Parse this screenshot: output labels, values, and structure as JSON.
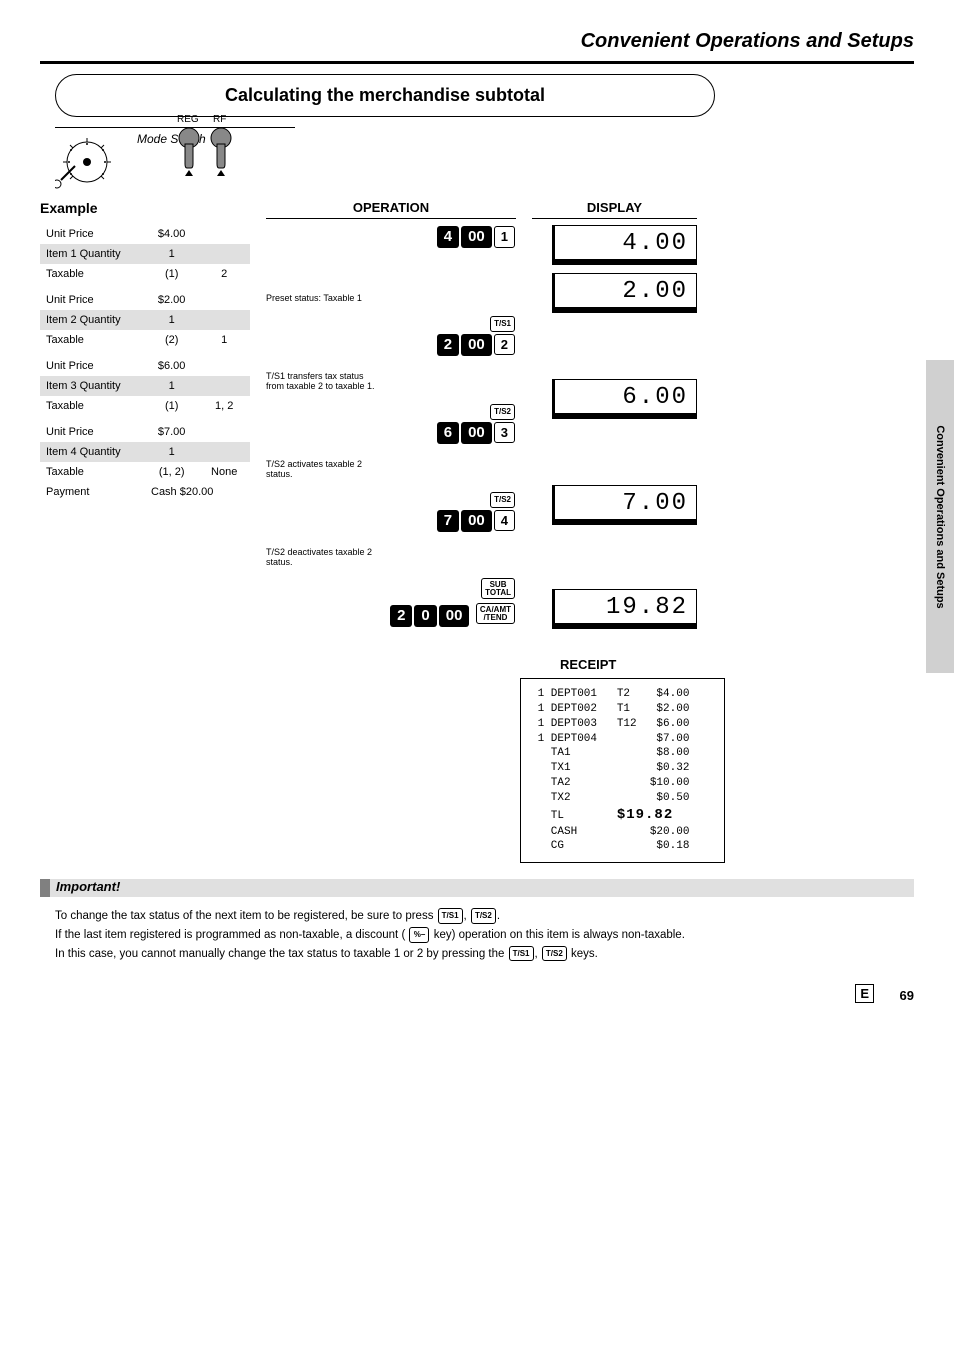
{
  "header": {
    "section_title": "Convenient Operations and Setups"
  },
  "title_box": "Calculating the merchandise subtotal",
  "mode": {
    "label": "Mode Switch",
    "arrow1": "REG",
    "arrow2": "RF"
  },
  "example": {
    "heading": "Example",
    "rows": [
      {
        "label": "Unit Price",
        "values": [
          "$4.00",
          ""
        ],
        "shaded": false
      },
      {
        "label": "Item 1 Quantity",
        "values": [
          "1",
          ""
        ],
        "shaded": true
      },
      {
        "label": "Taxable",
        "values": [
          "(1)",
          "2"
        ],
        "shaded": false
      },
      {
        "label": "Unit Price",
        "values": [
          "$2.00",
          ""
        ],
        "shaded": false
      },
      {
        "label": "Item 2 Quantity",
        "values": [
          "1",
          ""
        ],
        "shaded": true
      },
      {
        "label": "Taxable",
        "values": [
          "(2)",
          "1"
        ],
        "shaded": false
      },
      {
        "label": "Unit Price",
        "values": [
          "$6.00",
          ""
        ],
        "shaded": false
      },
      {
        "label": "Item 3 Quantity",
        "values": [
          "1",
          ""
        ],
        "shaded": true
      },
      {
        "label": "Taxable",
        "values": [
          "(1)",
          "1, 2"
        ],
        "shaded": false
      },
      {
        "label": "Unit Price",
        "values": [
          "$7.00",
          ""
        ],
        "shaded": false
      },
      {
        "label": "Item 4 Quantity",
        "values": [
          "1",
          ""
        ],
        "shaded": true
      },
      {
        "label": "Taxable",
        "values": [
          "(1, 2)",
          "None"
        ],
        "shaded": false
      },
      {
        "label": "Payment",
        "values": [
          "Cash  $20.00",
          ""
        ],
        "shaded": false,
        "span": true
      }
    ]
  },
  "operation": {
    "heading": "OPERATION",
    "blocks": [
      {
        "top_key": null,
        "dark_keys": [
          "4",
          "00"
        ],
        "dept_key": "1",
        "annotation": "Preset status: Taxable 1"
      },
      {
        "top_key": "T/S1",
        "dark_keys": [
          "2",
          "00"
        ],
        "dept_key": "2",
        "annotation": "T/S1 transfers tax status\nfrom taxable 2 to taxable 1."
      },
      {
        "top_key": "T/S2",
        "dark_keys": [
          "6",
          "00"
        ],
        "dept_key": "3",
        "annotation": "T/S2 activates taxable 2\nstatus."
      },
      {
        "top_key": "T/S2",
        "dark_keys": [
          "7",
          "00"
        ],
        "dept_key": "4",
        "annotation": "T/S2 deactivates taxable 2\nstatus."
      }
    ],
    "final": {
      "sub": "SUB\nTOTAL",
      "tender_keys": [
        "2",
        "0",
        "00"
      ],
      "tender_label": "CA/AMT\n/TEND"
    }
  },
  "display": {
    "heading": "DISPLAY",
    "items": [
      {
        "value": "4.00",
        "sub": "—"
      },
      {
        "value": "2.00",
        "sub": "—"
      },
      {
        "gap": "g2"
      },
      {
        "value": "6.00",
        "sub": "— —"
      },
      {
        "gap": "g2"
      },
      {
        "value": "7.00",
        "sub": ""
      },
      {
        "gap": "g3"
      },
      {
        "value": "19.82",
        "sub": ""
      }
    ]
  },
  "receipt": {
    "heading": "RECEIPT",
    "lines": [
      " 1 DEPT001   T2    $4.00",
      " 1 DEPT002   T1    $2.00",
      " 1 DEPT003   T12   $6.00",
      " 1 DEPT004         $7.00",
      "   TA1             $8.00",
      "   TX1             $0.32",
      "   TA2            $10.00",
      "   TX2             $0.50"
    ],
    "total_line_label": "   TL        ",
    "total_line_value": "$19.82",
    "tail": [
      "   CASH           $20.00",
      "   CG              $0.18"
    ]
  },
  "notes": {
    "bar_title": "Important!",
    "body_1": "To change the tax status of the next item to be registered, be sure to press ",
    "key1": "T/S1",
    "body_1b": ", ",
    "key2": "T/S2",
    "body_1c": ".",
    "body_2a": "If the last item registered is programmed as non-taxable, a discount (",
    "key3": "%–",
    "body_2b": " key) operation on this item is always non-taxable.",
    "body_3a": "In this case, you cannot manually change the tax status to taxable 1 or 2 by pressing the ",
    "key4": "T/S1",
    "body_3b": ", ",
    "key5": "T/S2",
    "body_3c": " keys."
  },
  "side_tab": "Convenient Operations and Setups",
  "footer": {
    "label": "E",
    "page": "69"
  }
}
